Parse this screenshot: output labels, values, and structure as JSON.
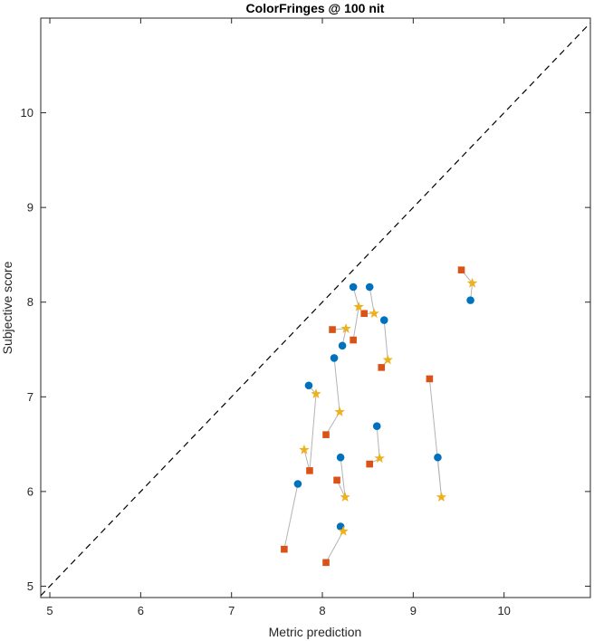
{
  "chart_data": {
    "type": "scatter",
    "title": "ColorFringes @ 100 nit",
    "xlabel": "Metric prediction",
    "ylabel": "Subjective score",
    "xlim": [
      4.9,
      10.95
    ],
    "ylim": [
      4.88,
      11.0
    ],
    "xticks": [
      5,
      6,
      7,
      8,
      9,
      10
    ],
    "yticks": [
      5,
      6,
      7,
      8,
      9,
      10
    ],
    "grid": false,
    "reference_line": {
      "style": "dashed",
      "color": "#000000",
      "from": [
        4.9,
        4.9
      ],
      "to": [
        10.95,
        10.95
      ]
    },
    "connector_color": "#b3b3b3",
    "series": [
      {
        "marker": "circle",
        "color": "#0072bd",
        "points": [
          [
            8.34,
            8.16
          ],
          [
            8.52,
            8.16
          ],
          [
            8.68,
            7.81
          ],
          [
            8.22,
            7.54
          ],
          [
            8.13,
            7.41
          ],
          [
            7.85,
            7.12
          ],
          [
            8.6,
            6.69
          ],
          [
            9.27,
            6.36
          ],
          [
            8.2,
            6.36
          ],
          [
            7.73,
            6.08
          ],
          [
            8.2,
            5.63
          ],
          [
            9.63,
            8.02
          ]
        ]
      },
      {
        "marker": "square",
        "color": "#d95319",
        "points": [
          [
            9.53,
            8.34
          ],
          [
            8.46,
            7.88
          ],
          [
            8.11,
            7.71
          ],
          [
            8.34,
            7.6
          ],
          [
            8.65,
            7.31
          ],
          [
            9.18,
            7.19
          ],
          [
            8.04,
            6.6
          ],
          [
            7.86,
            6.22
          ],
          [
            8.52,
            6.29
          ],
          [
            8.16,
            6.12
          ],
          [
            7.58,
            5.39
          ],
          [
            8.04,
            5.25
          ]
        ]
      },
      {
        "marker": "star",
        "color": "#edb120",
        "points": [
          [
            9.65,
            8.2
          ],
          [
            8.4,
            7.95
          ],
          [
            8.57,
            7.88
          ],
          [
            8.26,
            7.72
          ],
          [
            8.72,
            7.39
          ],
          [
            7.93,
            7.03
          ],
          [
            8.19,
            6.84
          ],
          [
            7.8,
            6.44
          ],
          [
            8.63,
            6.35
          ],
          [
            8.25,
            5.94
          ],
          [
            9.31,
            5.94
          ],
          [
            8.23,
            5.58
          ]
        ]
      }
    ],
    "connectors": [
      [
        [
          8.34,
          8.16
        ],
        [
          8.4,
          7.95
        ],
        [
          8.34,
          7.6
        ]
      ],
      [
        [
          8.52,
          8.16
        ],
        [
          8.57,
          7.88
        ],
        [
          8.46,
          7.88
        ]
      ],
      [
        [
          8.68,
          7.81
        ],
        [
          8.72,
          7.39
        ],
        [
          8.65,
          7.31
        ]
      ],
      [
        [
          8.22,
          7.54
        ],
        [
          8.26,
          7.72
        ],
        [
          8.11,
          7.71
        ]
      ],
      [
        [
          8.13,
          7.41
        ],
        [
          8.19,
          6.84
        ],
        [
          8.04,
          6.6
        ]
      ],
      [
        [
          7.85,
          7.12
        ],
        [
          7.93,
          7.03
        ],
        [
          7.86,
          6.22
        ],
        [
          7.8,
          6.44
        ]
      ],
      [
        [
          8.6,
          6.69
        ],
        [
          8.63,
          6.35
        ],
        [
          8.52,
          6.29
        ]
      ],
      [
        [
          9.27,
          6.36
        ],
        [
          9.31,
          5.94
        ],
        [
          9.18,
          7.19
        ]
      ],
      [
        [
          8.2,
          6.36
        ],
        [
          8.25,
          5.94
        ],
        [
          8.16,
          6.12
        ]
      ],
      [
        [
          7.73,
          6.08
        ],
        [
          7.58,
          5.39
        ]
      ],
      [
        [
          8.2,
          5.63
        ],
        [
          8.23,
          5.58
        ],
        [
          8.04,
          5.25
        ]
      ],
      [
        [
          9.63,
          8.02
        ],
        [
          9.65,
          8.2
        ],
        [
          9.53,
          8.34
        ]
      ]
    ]
  }
}
